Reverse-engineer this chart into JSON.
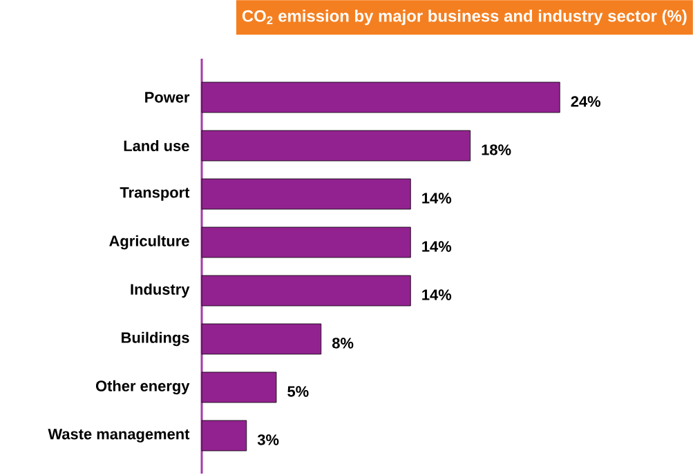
{
  "chart_data": {
    "type": "bar",
    "orientation": "horizontal",
    "title": "CO$_{2}$ emission by major business and industry sector (%)",
    "categories": [
      "Power",
      "Land use",
      "Transport",
      "Agriculture",
      "Industry",
      "Buildings",
      "Other energy",
      "Waste management"
    ],
    "values": [
      24,
      18,
      14,
      14,
      14,
      8,
      5,
      3
    ],
    "value_labels": [
      "24%",
      "18%",
      "14%",
      "14%",
      "14%",
      "8%",
      "5%",
      "3%"
    ],
    "color": "#92228f"
  }
}
